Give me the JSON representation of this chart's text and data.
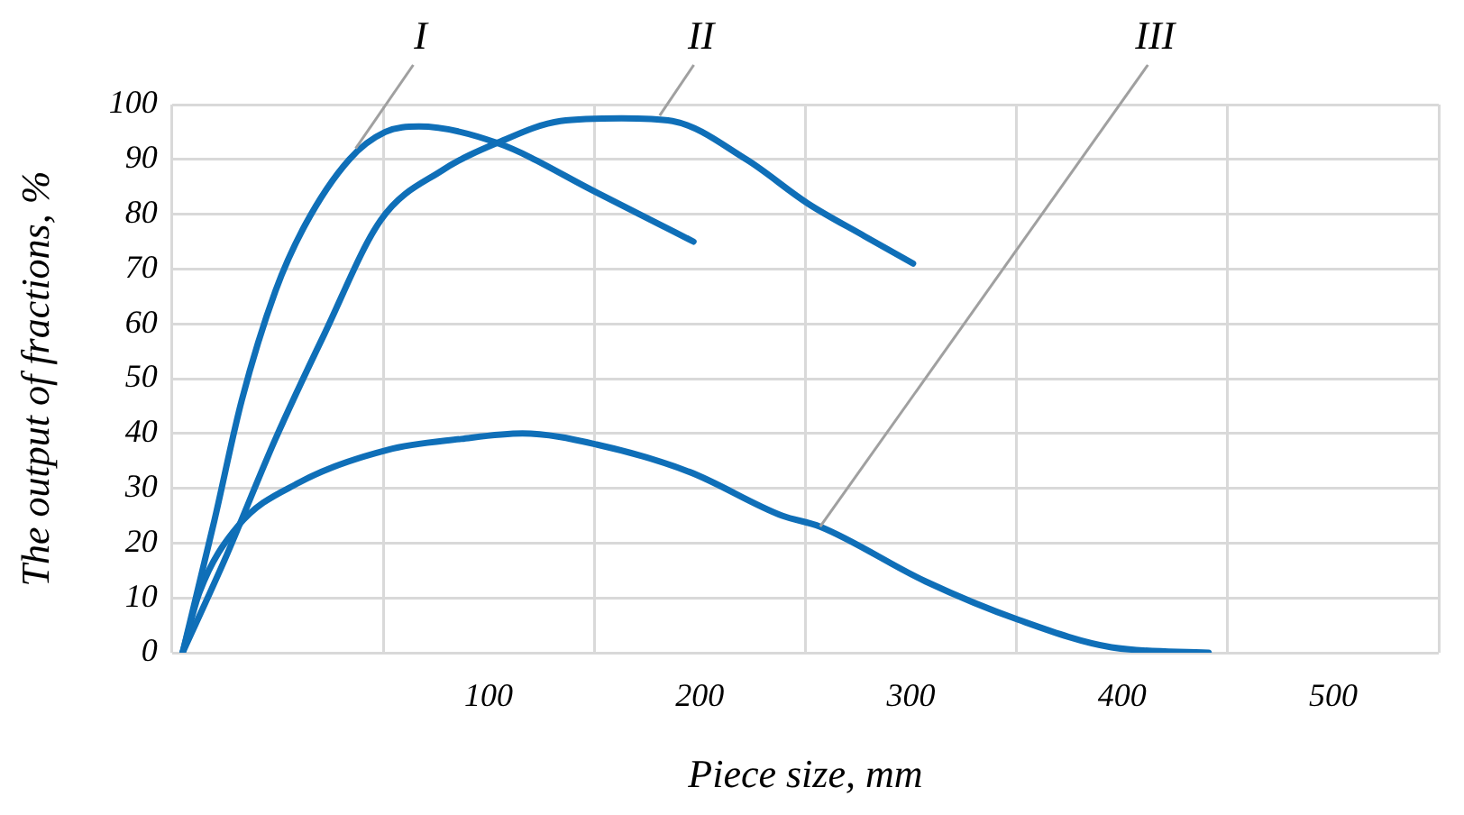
{
  "chart_data": {
    "type": "line",
    "xlabel": "Piece size, mm",
    "ylabel": "The output of fractions, %",
    "xlim": [
      -50,
      550
    ],
    "xticks": [
      {
        "value": -50,
        "label": null
      },
      {
        "value": 50,
        "label": null
      },
      100,
      {
        "value": 150,
        "label": null
      },
      200,
      {
        "value": 250,
        "label": null
      },
      300,
      {
        "value": 350,
        "label": null
      },
      400,
      {
        "value": 450,
        "label": null
      },
      500,
      {
        "value": 550,
        "label": null
      }
    ],
    "ylim": [
      0,
      100
    ],
    "yticks": [
      0,
      10,
      20,
      30,
      40,
      50,
      60,
      70,
      80,
      90,
      100
    ],
    "grid": true,
    "legend": false,
    "marker": "none",
    "line_style": "solid",
    "series": [
      {
        "color": "#0f6fb8",
        "x": [
          -45,
          -30,
          -17,
          -1,
          13,
          34,
          51,
          67,
          104,
          151,
          197
        ],
        "values": [
          0,
          24,
          46,
          66,
          78,
          90,
          95,
          96,
          93,
          84,
          75
        ]
      },
      {
        "color": "#0f6fb8",
        "x": [
          -45,
          -25,
          -1,
          22,
          49,
          78,
          104,
          134,
          163,
          187,
          222,
          251,
          278,
          301
        ],
        "values": [
          0,
          17,
          39,
          58,
          79,
          88,
          93,
          97,
          97.5,
          97,
          90,
          82,
          76,
          71
        ]
      },
      {
        "color": "#0f6fb8",
        "x": [
          -45,
          -37,
          -19,
          10,
          52,
          87,
          116,
          151,
          195,
          239,
          257,
          307,
          351,
          395,
          441
        ],
        "values": [
          0,
          11,
          23,
          31,
          37,
          39,
          40,
          38,
          33,
          25,
          23,
          13,
          6,
          1,
          0
        ]
      }
    ],
    "annotations": [
      {
        "text": "I",
        "x": 37,
        "y": 92
      },
      {
        "text": "II",
        "x": 181,
        "y": 98
      },
      {
        "text": "III",
        "x": 257,
        "y": 23
      }
    ]
  }
}
